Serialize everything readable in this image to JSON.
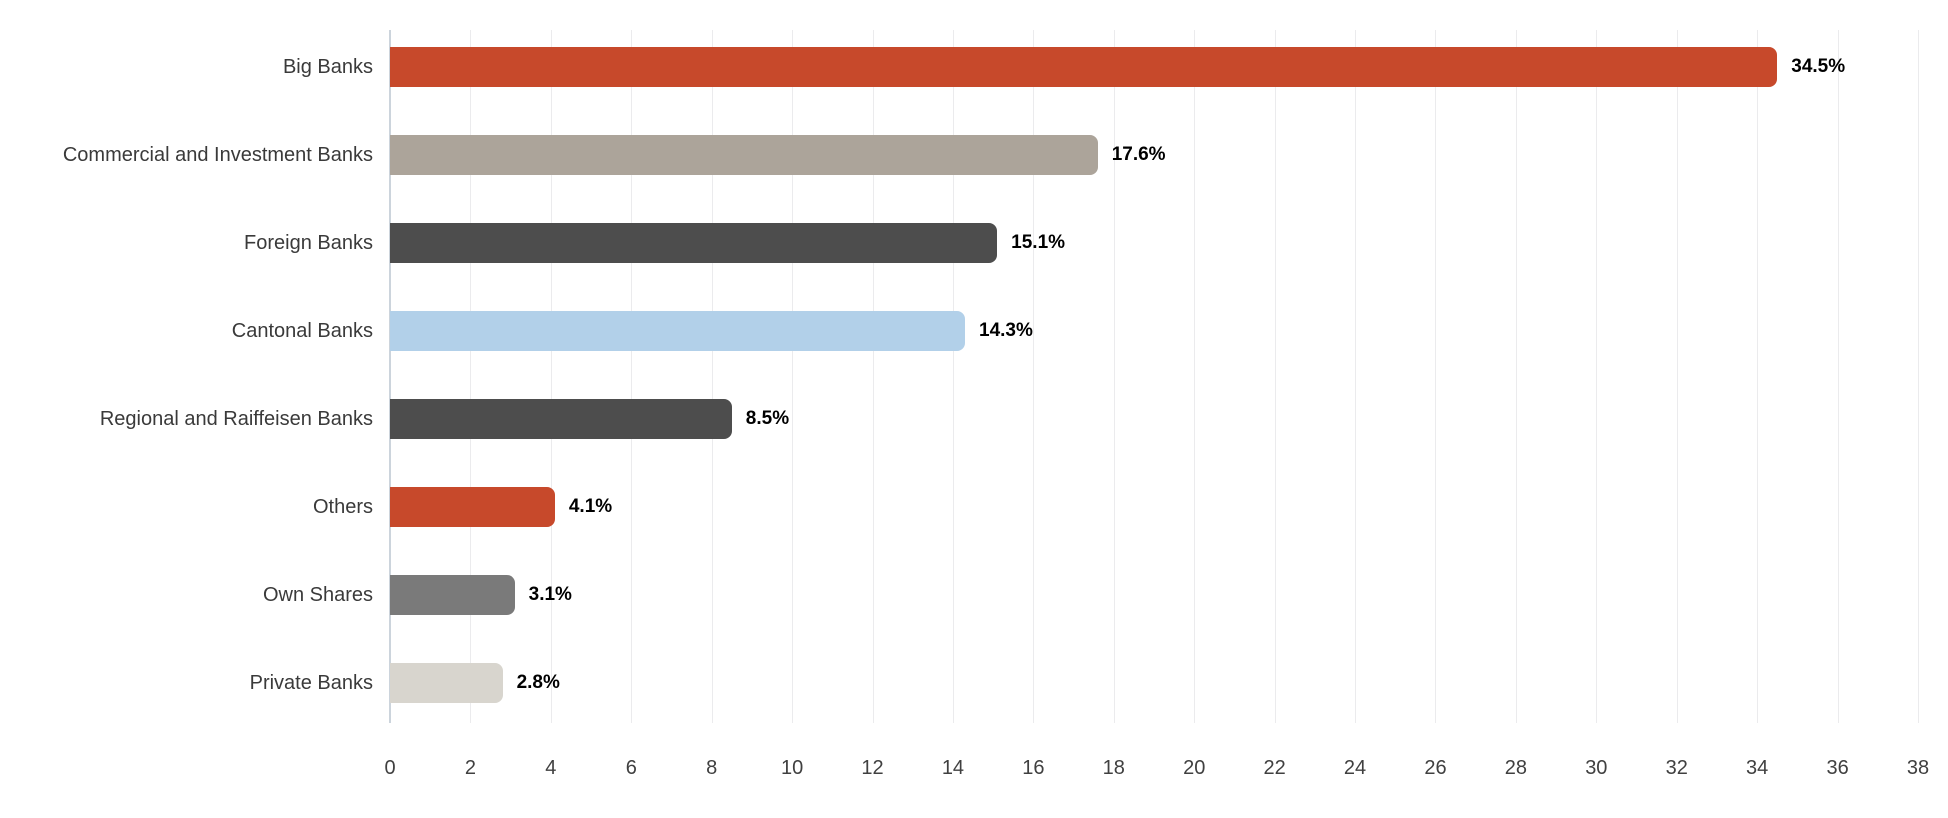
{
  "chart_data": {
    "type": "bar",
    "orientation": "horizontal",
    "title": "",
    "xlabel": "",
    "ylabel": "",
    "categories": [
      "Big Banks",
      "Commercial and Investment Banks",
      "Foreign Banks",
      "Cantonal Banks",
      "Regional and Raiffeisen Banks",
      "Others",
      "Own Shares",
      "Private Banks"
    ],
    "values": [
      34.5,
      17.6,
      15.1,
      14.3,
      8.5,
      4.1,
      3.1,
      2.8
    ],
    "value_labels": [
      "34.5%",
      "17.6%",
      "15.1%",
      "14.3%",
      "8.5%",
      "4.1%",
      "3.1%",
      "2.8%"
    ],
    "bar_colors": [
      "#c7492b",
      "#aca49a",
      "#4d4d4d",
      "#b2d0e9",
      "#4d4d4d",
      "#c7492b",
      "#7a7a7a",
      "#d8d5ce"
    ],
    "xlim": [
      0,
      38
    ],
    "x_ticks": [
      0,
      2,
      4,
      6,
      8,
      10,
      12,
      14,
      16,
      18,
      20,
      22,
      24,
      26,
      28,
      30,
      32,
      34,
      36,
      38
    ],
    "grid": "vertical",
    "legend": "none"
  },
  "colors": {
    "background": "#ffffff",
    "gridline": "#ebebed",
    "axis_zero_line": "#ccd4dc",
    "category_label": "#3a3a3a",
    "tick_label": "#404040",
    "value_label": "#000000"
  }
}
